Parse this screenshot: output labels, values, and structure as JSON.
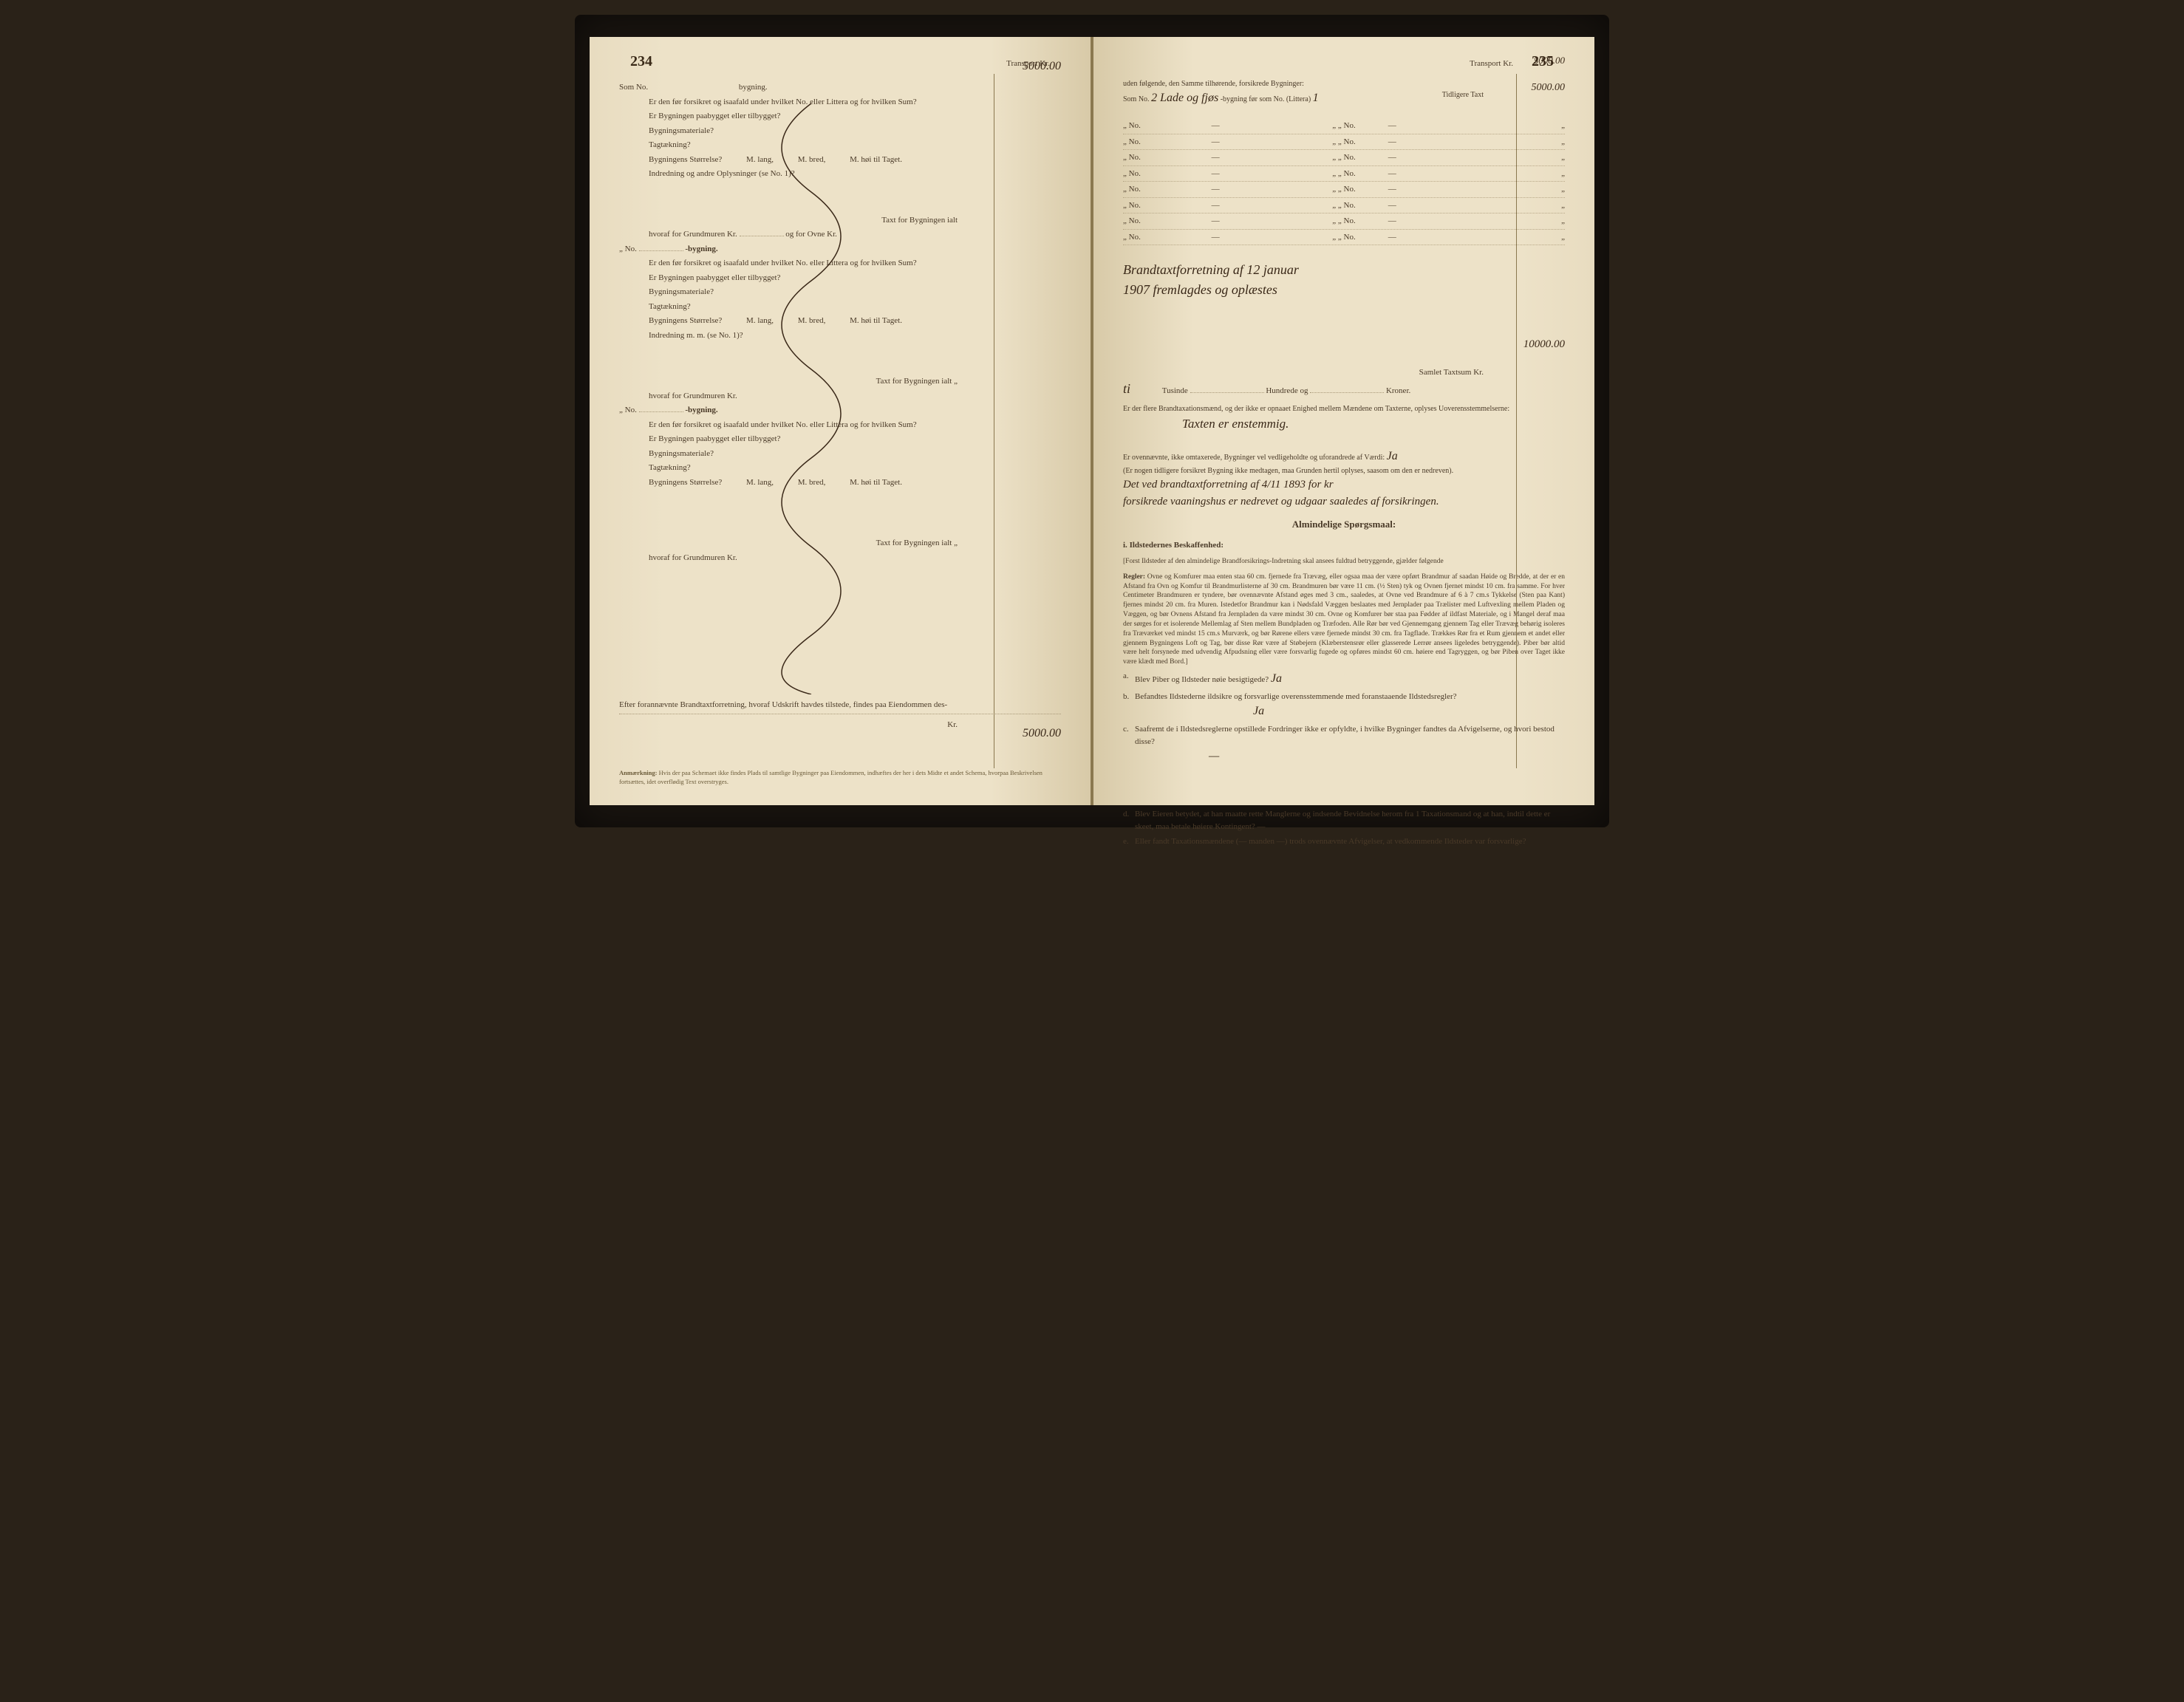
{
  "leftPage": {
    "pageNumber": "234",
    "transportLabel": "Transport Kr.",
    "transportValue": "5000.00",
    "somNo": "Som No.",
    "bygning": "bygning.",
    "q1": "Er den før forsikret og isaafald under hvilket No. eller Littera og for hvilken Sum?",
    "q2": "Er Bygningen paabygget eller tilbygget?",
    "q3": "Bygningsmateriale?",
    "q4": "Tagtækning?",
    "q5a": "Bygningens Størrelse?",
    "q5_lang": "M. lang,",
    "q5_bred": "M. bred,",
    "q5_hoi": "M. høi til Taget.",
    "q6": "Indredning og andre Oplysninger (se No. 1)?",
    "q6b": "Indredning m. m. (se No. 1)?",
    "taxtLabel": "Taxt for Bygningen ialt",
    "grundmur": "hvoraf for Grundmuren Kr.",
    "ovneLabel": "og for Ovne Kr.",
    "noLabel": "No.",
    "efterLabel": "Efter forannævnte Brandtaxtforretning, hvoraf Udskrift havdes tilstede, findes paa Eiendommen des-",
    "krLabel": "Kr.",
    "finalValue": "5000.00",
    "anmerkning": "Anmærkning:",
    "anmerkningText": "Hvis der paa Schemaet ikke findes Plads til samtlige Bygninger paa Eiendommen, indhæftes der her i dets Midte et andet Schema, hvorpaa Beskrivelsen fortsættes, idet overflødig Text overstryges."
  },
  "rightPage": {
    "pageNumber": "235",
    "transportLabel": "Transport Kr.",
    "transportValue": "5000.00",
    "transportValue2": "5000.00",
    "udenLabel": "uden følgende, den Samme tilhørende, forsikrede Bygninger:",
    "somNoLabel": "Som No.",
    "somNoHw": "2 Lade og fjøs",
    "bygningFor": "-bygning før som No. (Littera)",
    "litteraHw": "1",
    "tidligereTaxt": "Tidligere Taxt",
    "noRows": [
      {
        "col1": "No.",
        "col2": "—",
        "col3": "No.",
        "col4": "—"
      },
      {
        "col1": "No.",
        "col2": "—",
        "col3": "No.",
        "col4": "—"
      },
      {
        "col1": "No.",
        "col2": "—",
        "col3": "No.",
        "col4": "—"
      },
      {
        "col1": "No.",
        "col2": "—",
        "col3": "No.",
        "col4": "—"
      },
      {
        "col1": "No.",
        "col2": "—",
        "col3": "No.",
        "col4": "—"
      },
      {
        "col1": "No.",
        "col2": "—",
        "col3": "No.",
        "col4": "—"
      },
      {
        "col1": "No.",
        "col2": "—",
        "col3": "No.",
        "col4": "—"
      },
      {
        "col1": "No.",
        "col2": "—",
        "col3": "No.",
        "col4": "—"
      }
    ],
    "hwNote1": "Brandtaxtforretning af 12 januar",
    "hwNote2": "1907 fremlagdes og oplæstes",
    "samletLabel": "Samlet Taxtsum Kr.",
    "samletValue": "10000.00",
    "tiHw": "ti",
    "tusindeLabel": "Tusinde",
    "hundredeLabel": "Hundrede og",
    "kronerLabel": "Kroner.",
    "flereLabel": "Er der flere Brandtaxationsmænd, og der ikke er opnaaet Enighed mellem Mændene om Taxterne, oplyses Uoverensstemmelserne:",
    "taxtenHw": "Taxten er enstemmig.",
    "ovennævnteLabel": "Er ovennævnte, ikke omtaxerede, Bygninger vel vedligeholdte og uforandrede af Værdi:",
    "jaHw": "Ja",
    "erNogenLabel": "(Er nogen tidligere forsikret Bygning ikke medtagen, maa Grunden hertil oplyses, saasom om den er nedreven).",
    "detVedHw": "Det ved brandtaxtforretning af 4/11 1893 for kr",
    "forsikredeHw": "forsikrede vaaningshus er nedrevet og udgaar saaledes af forsikringen.",
    "almindeligeHeading": "Almindelige Spørgsmaal:",
    "ildstedernesHeading": "Ildstedernes Beskaffenhed:",
    "forstText": "[Forst Ildsteder af den almindelige Brandforsikrings-Indretning skal ansees fuldtud betryggende, gjælder følgende",
    "reglerLabel": "Regler:",
    "reglerText": "Ovne og Komfurer maa enten staa 60 cm. fjernede fra Trævæg, eller ogsaa maa der være opført Brandmur af saadan Høide og Bredde, at der er en Afstand fra Ovn og Komfur til Brandmurlisterne af 30 cm. Brandmuren bør være 11 cm. (½ Sten) tyk og Ovnen fjernet mindst 10 cm. fra samme. For hver Centimeter Brandmuren er tyndere, bør ovennævnte Afstand øges med 3 cm., saaledes, at Ovne ved Brandmure af 6 à 7 cm.s Tykkelse (Sten paa Kant) fjernes mindst 20 cm. fra Muren. Istedetfor Brandmur kan i Nødsfald Væggen beslaates med Jernplader paa Trælister med Luftvexling mellem Pladen og Væggen, og bør Ovnens Afstand fra Jernpladen da være mindst 30 cm. Ovne og Komfurer bør staa paa Fødder af ildfast Materiale, og i Mangel deraf maa der sørges for et isolerende Mellemlag af Sten mellem Bundpladen og Træfoden. Alle Rør bør ved Gjennemgang gjennem Tag eller Trævæg behørig isoleres fra Træværket ved mindst 15 cm.s Murværk, og bør Rørene ellers være fjernede mindst 30 cm. fra Tagflade. Trækkes Rør fra et Rum gjennem et andet eller gjennem Bygningens Loft og Tag, bør disse Rør være af Støbejern (Klæberstensrør eller glasserede Lerrør ansees ligeledes betryggende). Piber bør altid være helt forsynede med udvendig Afpudsning eller være forsvarlig fugede og opføres mindst 60 cm. høiere end Tagryggen, og bør Piben over Taget ikke være klædt med Bord.]",
    "qa": "Blev Piber og Ildsteder nøie besigtigede?",
    "qaHw": "Ja",
    "qb": "Befandtes Ildstederne ildsikre og forsvarlige overensstemmende med foranstaaende Ildstedsregler?",
    "qbHw": "Ja",
    "qc": "Saafremt de i Ildstedsreglerne opstillede Fordringer ikke er opfyldte, i hvilke Bygninger fandtes da Afvigelserne, og hvori bestod disse?",
    "qd": "Blev Eieren betydet, at han maatte rette Manglerne og indsende Bevidnelse herom fra 1 Taxationsmand og at han, indtil dette er skeet, maa betale høiere Kontingent? —",
    "qe": "Eller fandt Taxationsmændene (— manden —) trods ovennævnte Afvigelser, at vedkommende Ildsteder var forsvarlige?"
  }
}
